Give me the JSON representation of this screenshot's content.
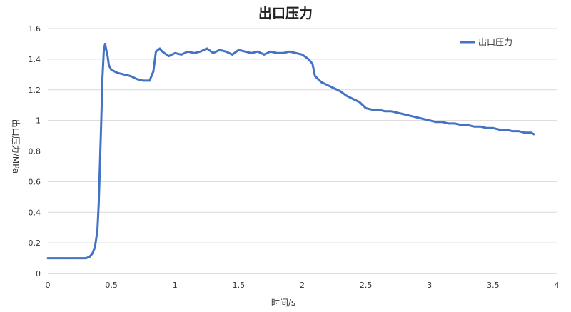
{
  "chart_data": {
    "type": "line",
    "title": "出口压力",
    "xlabel": "时间/s",
    "ylabel": "出口压力/MPa",
    "xlim": [
      0,
      4
    ],
    "ylim": [
      0,
      1.6
    ],
    "x_ticks": [
      0,
      0.5,
      1,
      1.5,
      2,
      2.5,
      3,
      3.5,
      4
    ],
    "x_tick_labels": [
      "0",
      "0.5",
      "1",
      "1.5",
      "2",
      "2.5",
      "3",
      "3.5",
      "4"
    ],
    "y_ticks": [
      0,
      0.2,
      0.4,
      0.6,
      0.8,
      1,
      1.2,
      1.4,
      1.6
    ],
    "y_tick_labels": [
      "0",
      "0.2",
      "0.4",
      "0.6",
      "0.8",
      "1",
      "1.2",
      "1.4",
      "1.6"
    ],
    "grid": "horizontal",
    "legend_position": "top-right",
    "series": [
      {
        "name": "出口压力",
        "color": "#4472C4",
        "x": [
          0,
          0.1,
          0.2,
          0.3,
          0.33,
          0.35,
          0.37,
          0.39,
          0.4,
          0.41,
          0.42,
          0.43,
          0.44,
          0.45,
          0.46,
          0.47,
          0.48,
          0.5,
          0.55,
          0.6,
          0.65,
          0.7,
          0.75,
          0.8,
          0.83,
          0.85,
          0.88,
          0.9,
          0.95,
          1.0,
          1.05,
          1.1,
          1.15,
          1.2,
          1.25,
          1.3,
          1.35,
          1.4,
          1.45,
          1.5,
          1.55,
          1.6,
          1.65,
          1.7,
          1.75,
          1.8,
          1.85,
          1.9,
          1.95,
          2.0,
          2.05,
          2.08,
          2.1,
          2.15,
          2.2,
          2.25,
          2.3,
          2.35,
          2.4,
          2.45,
          2.5,
          2.55,
          2.6,
          2.65,
          2.7,
          2.75,
          2.8,
          2.85,
          2.9,
          2.95,
          3.0,
          3.05,
          3.1,
          3.15,
          3.2,
          3.25,
          3.3,
          3.35,
          3.4,
          3.45,
          3.5,
          3.55,
          3.6,
          3.65,
          3.7,
          3.75,
          3.8,
          3.82
        ],
        "values": [
          0.1,
          0.1,
          0.1,
          0.1,
          0.11,
          0.13,
          0.17,
          0.28,
          0.45,
          0.72,
          1.0,
          1.28,
          1.45,
          1.5,
          1.46,
          1.42,
          1.36,
          1.33,
          1.31,
          1.3,
          1.29,
          1.27,
          1.26,
          1.26,
          1.32,
          1.45,
          1.47,
          1.45,
          1.42,
          1.44,
          1.43,
          1.45,
          1.44,
          1.45,
          1.47,
          1.44,
          1.46,
          1.45,
          1.43,
          1.46,
          1.45,
          1.44,
          1.45,
          1.43,
          1.45,
          1.44,
          1.44,
          1.45,
          1.44,
          1.43,
          1.4,
          1.37,
          1.29,
          1.25,
          1.23,
          1.21,
          1.19,
          1.16,
          1.14,
          1.12,
          1.08,
          1.07,
          1.07,
          1.06,
          1.06,
          1.05,
          1.04,
          1.03,
          1.02,
          1.01,
          1.0,
          0.99,
          0.99,
          0.98,
          0.98,
          0.97,
          0.97,
          0.96,
          0.96,
          0.95,
          0.95,
          0.94,
          0.94,
          0.93,
          0.93,
          0.92,
          0.92,
          0.91
        ]
      }
    ]
  }
}
